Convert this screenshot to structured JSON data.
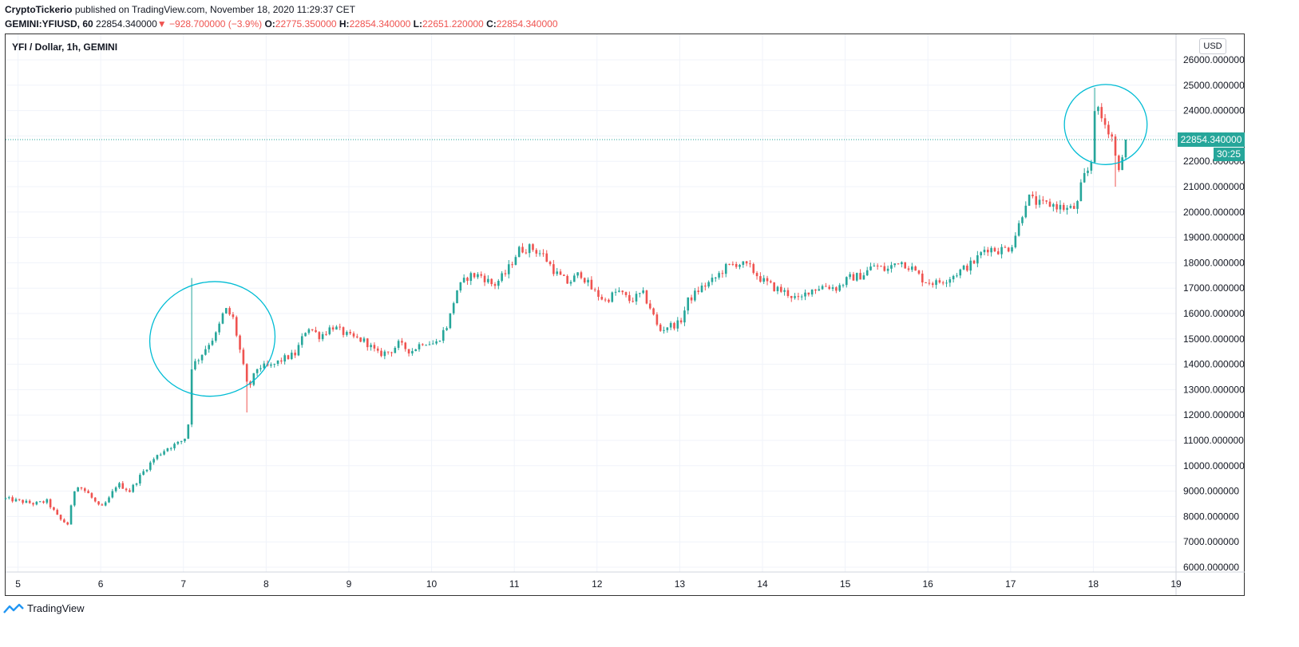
{
  "header": {
    "author": "CryptoTickerio",
    "published": "published on TradingView.com, November 18, 2020 11:29:37 CET",
    "symbol": "GEMINI:YFIUSD, 60",
    "last": "22854.340000",
    "change": "−928.700000 (−3.9%)",
    "o_label": "O:",
    "o": "22775.350000",
    "h_label": "H:",
    "h": "22854.340000",
    "l_label": "L:",
    "l": "22651.220000",
    "c_label": "C:",
    "c": "22854.340000"
  },
  "legend": "YFI / Dollar, 1h, GEMINI",
  "currency": "USD",
  "footer": {
    "brand": "TradingView"
  },
  "colors": {
    "up": "#26a69a",
    "down": "#ef5350",
    "accent": "#00bcd4",
    "grid": "#f0f3fa"
  },
  "chart_data": {
    "type": "candlestick",
    "title": "YFI / Dollar, 1h, GEMINI",
    "x_ticks": [
      "5",
      "6",
      "7",
      "8",
      "9",
      "10",
      "11",
      "12",
      "13",
      "14",
      "15",
      "16",
      "17",
      "18",
      "19"
    ],
    "x_range_days": [
      4.85,
      19.0
    ],
    "y_ticks": [
      "6000.000000",
      "7000.000000",
      "8000.000000",
      "9000.000000",
      "10000.000000",
      "11000.000000",
      "12000.000000",
      "13000.000000",
      "14000.000000",
      "15000.000000",
      "16000.000000",
      "17000.000000",
      "18000.000000",
      "19000.000000",
      "20000.000000",
      "21000.000000",
      "22000.000000",
      "23000.000000",
      "24000.000000",
      "25000.000000",
      "26000.000000"
    ],
    "ylim": [
      5800,
      26600
    ],
    "last_price": 22854.34,
    "last_price_label": "22854.340000",
    "countdown": "30:25",
    "path": [
      [
        4.85,
        8700
      ],
      [
        5.2,
        8500
      ],
      [
        5.35,
        8600
      ],
      [
        5.5,
        7900
      ],
      [
        5.6,
        7700
      ],
      [
        5.7,
        9300
      ],
      [
        5.85,
        8900
      ],
      [
        6.0,
        8300
      ],
      [
        6.1,
        8700
      ],
      [
        6.2,
        9300
      ],
      [
        6.35,
        9000
      ],
      [
        6.5,
        9700
      ],
      [
        6.65,
        10300
      ],
      [
        6.8,
        10700
      ],
      [
        6.95,
        10900
      ],
      [
        7.05,
        11200
      ],
      [
        7.1,
        13900
      ],
      [
        7.2,
        14300
      ],
      [
        7.3,
        14800
      ],
      [
        7.4,
        15200
      ],
      [
        7.5,
        16200
      ],
      [
        7.6,
        15800
      ],
      [
        7.7,
        14300
      ],
      [
        7.78,
        13000
      ],
      [
        7.9,
        13900
      ],
      [
        8.05,
        13900
      ],
      [
        8.2,
        14200
      ],
      [
        8.35,
        14400
      ],
      [
        8.5,
        15500
      ],
      [
        8.65,
        15100
      ],
      [
        8.8,
        15500
      ],
      [
        9.0,
        15100
      ],
      [
        9.2,
        14900
      ],
      [
        9.35,
        14400
      ],
      [
        9.5,
        14500
      ],
      [
        9.6,
        14800
      ],
      [
        9.75,
        14500
      ],
      [
        9.9,
        14900
      ],
      [
        10.05,
        14800
      ],
      [
        10.2,
        15600
      ],
      [
        10.3,
        16900
      ],
      [
        10.45,
        17500
      ],
      [
        10.6,
        17500
      ],
      [
        10.75,
        17100
      ],
      [
        10.9,
        17600
      ],
      [
        11.05,
        18500
      ],
      [
        11.2,
        18600
      ],
      [
        11.35,
        18300
      ],
      [
        11.5,
        17600
      ],
      [
        11.65,
        17200
      ],
      [
        11.8,
        17600
      ],
      [
        11.95,
        16900
      ],
      [
        12.1,
        16500
      ],
      [
        12.25,
        16900
      ],
      [
        12.4,
        16500
      ],
      [
        12.55,
        16800
      ],
      [
        12.65,
        16200
      ],
      [
        12.75,
        15300
      ],
      [
        12.85,
        15500
      ],
      [
        13.0,
        15600
      ],
      [
        13.1,
        16500
      ],
      [
        13.25,
        17000
      ],
      [
        13.4,
        17300
      ],
      [
        13.55,
        17800
      ],
      [
        13.7,
        18000
      ],
      [
        13.85,
        17800
      ],
      [
        14.0,
        17300
      ],
      [
        14.15,
        17000
      ],
      [
        14.3,
        16800
      ],
      [
        14.45,
        16500
      ],
      [
        14.55,
        16900
      ],
      [
        14.75,
        17100
      ],
      [
        14.9,
        17000
      ],
      [
        15.05,
        17400
      ],
      [
        15.2,
        17500
      ],
      [
        15.35,
        17900
      ],
      [
        15.5,
        17700
      ],
      [
        15.65,
        18100
      ],
      [
        15.8,
        17800
      ],
      [
        15.95,
        17300
      ],
      [
        16.1,
        17200
      ],
      [
        16.25,
        17400
      ],
      [
        16.4,
        17700
      ],
      [
        16.55,
        18000
      ],
      [
        16.7,
        18600
      ],
      [
        16.85,
        18500
      ],
      [
        17.0,
        18600
      ],
      [
        17.1,
        19500
      ],
      [
        17.2,
        20600
      ],
      [
        17.35,
        20300
      ],
      [
        17.5,
        20300
      ],
      [
        17.6,
        20200
      ],
      [
        17.7,
        20100
      ],
      [
        17.8,
        20200
      ],
      [
        17.87,
        21300
      ],
      [
        17.95,
        21700
      ],
      [
        17.99,
        22200
      ],
      [
        18.01,
        24200
      ],
      [
        18.08,
        23800
      ],
      [
        18.15,
        23400
      ],
      [
        18.22,
        23100
      ],
      [
        18.27,
        22100
      ],
      [
        18.33,
        21700
      ],
      [
        18.38,
        22500
      ],
      [
        18.43,
        22854.34
      ]
    ],
    "annotations": [
      {
        "type": "ellipse",
        "center": [
          7.35,
          15000
        ],
        "radii_days_usd": [
          0.76,
          2250
        ],
        "rotation": -12
      },
      {
        "type": "ellipse",
        "center": [
          18.15,
          23450
        ],
        "radii_days_usd": [
          0.5,
          1580
        ],
        "rotation": 0
      }
    ]
  }
}
